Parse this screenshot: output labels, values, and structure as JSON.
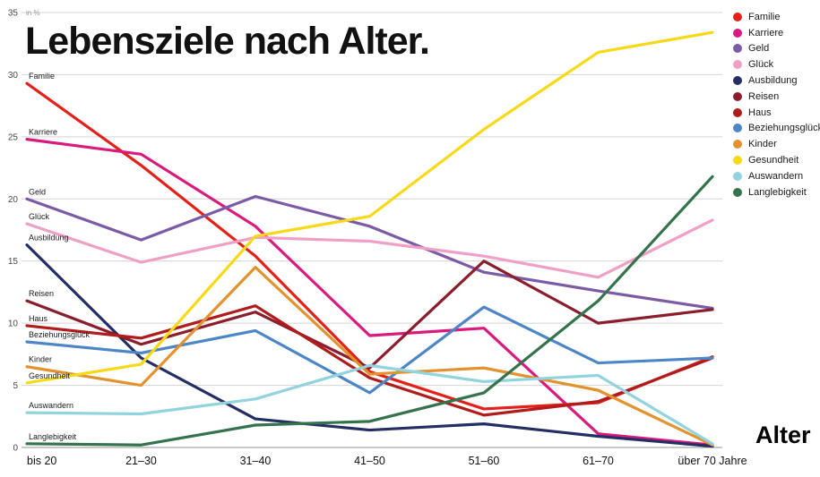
{
  "title": "Lebensziele nach Alter.",
  "axis_note": "in %",
  "x_axis_title": "Alter",
  "colors": {
    "background": "#ffffff",
    "grid": "#d4d4d4",
    "baseline": "#909090",
    "text": "#1a1a1a"
  },
  "chart_data": {
    "type": "line",
    "title": "Lebensziele nach Alter.",
    "ylabel": "in %",
    "xlabel": "Alter",
    "ylim": [
      0,
      35
    ],
    "yticks": [
      0,
      5,
      10,
      15,
      20,
      25,
      30,
      35
    ],
    "grid": true,
    "legend_position": "top-right",
    "categories": [
      "bis 20",
      "21–30",
      "31–40",
      "41–50",
      "51–60",
      "61–70",
      "über 70 Jahre"
    ],
    "series": [
      {
        "name": "Familie",
        "color": "#e32119",
        "values": [
          29.3,
          22.7,
          15.4,
          6.1,
          3.1,
          3.6,
          7.3
        ]
      },
      {
        "name": "Karriere",
        "color": "#d81b7c",
        "values": [
          24.8,
          23.6,
          17.8,
          9.0,
          9.6,
          1.1,
          0.2
        ]
      },
      {
        "name": "Geld",
        "color": "#7b5aa6",
        "values": [
          20.0,
          16.7,
          20.2,
          17.8,
          14.1,
          12.6,
          11.2
        ]
      },
      {
        "name": "Glück",
        "color": "#efa0c6",
        "values": [
          18.0,
          14.9,
          16.9,
          16.6,
          15.4,
          13.7,
          18.3
        ]
      },
      {
        "name": "Ausbildung",
        "color": "#232e64",
        "values": [
          16.3,
          7.2,
          2.3,
          1.4,
          1.9,
          0.9,
          0.1
        ]
      },
      {
        "name": "Reisen",
        "color": "#8b1e2d",
        "values": [
          11.8,
          8.3,
          10.9,
          6.4,
          15.0,
          10.0,
          11.1
        ]
      },
      {
        "name": "Haus",
        "color": "#b01c1c",
        "values": [
          9.8,
          8.8,
          11.4,
          5.6,
          2.6,
          3.7,
          7.2
        ]
      },
      {
        "name": "Beziehungsglück",
        "color": "#4d86c6",
        "values": [
          8.5,
          7.6,
          9.4,
          4.4,
          11.3,
          6.8,
          7.2
        ]
      },
      {
        "name": "Kinder",
        "color": "#e2922e",
        "values": [
          6.5,
          5.0,
          14.5,
          5.9,
          6.4,
          4.6,
          0.2
        ]
      },
      {
        "name": "Gesundheit",
        "color": "#f7d917",
        "values": [
          5.2,
          6.7,
          17.0,
          18.6,
          25.6,
          31.8,
          33.4
        ]
      },
      {
        "name": "Auswandern",
        "color": "#92d3dd",
        "values": [
          2.8,
          2.7,
          3.9,
          6.6,
          5.3,
          5.8,
          0.3
        ]
      },
      {
        "name": "Langlebigkeit",
        "color": "#35734c",
        "values": [
          0.3,
          0.2,
          1.8,
          2.1,
          4.4,
          11.8,
          21.8
        ]
      }
    ]
  }
}
